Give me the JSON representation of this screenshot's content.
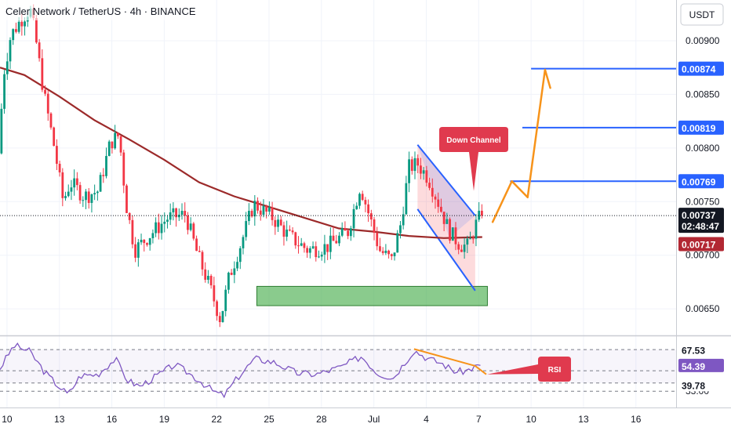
{
  "header": {
    "title": "Celer Network / TetherUS · 4h · BINANCE",
    "currency_button": "USDT"
  },
  "colors": {
    "bull": "#089981",
    "bear": "#f23645",
    "ma": "#9c2a2a",
    "target_line": "#2962ff",
    "projection": "#f7931a",
    "zone": "#4caf50",
    "rsi": "#7e57c2",
    "callout": "#e03a4e"
  },
  "annotations": {
    "down_channel": "Down Channel",
    "rsi_label": "RSI"
  },
  "chart_data": {
    "type": "candlestick",
    "symbol": "CELRUSDT",
    "exchange": "BINANCE",
    "timeframe": "4h",
    "ylabel": "USDT",
    "ylim": [
      0.00626,
      0.00938
    ],
    "x_ticks": [
      "10",
      "13",
      "16",
      "19",
      "22",
      "25",
      "28",
      "Jul",
      "4",
      "7",
      "10",
      "13",
      "16"
    ],
    "x_range_days": [
      9.6,
      16.6
    ],
    "y_ticks": [
      "0.00650",
      "0.00700",
      "0.00750",
      "0.00800",
      "0.00850",
      "0.00900"
    ],
    "anchors": [
      {
        "t": 9.6,
        "p": 0.00795
      },
      {
        "t": 9.9,
        "p": 0.0087
      },
      {
        "t": 10.3,
        "p": 0.00905
      },
      {
        "t": 10.9,
        "p": 0.0092
      },
      {
        "t": 11.4,
        "p": 0.0093
      },
      {
        "t": 11.7,
        "p": 0.00905
      },
      {
        "t": 12.2,
        "p": 0.0085
      },
      {
        "t": 12.8,
        "p": 0.008
      },
      {
        "t": 13.3,
        "p": 0.0075
      },
      {
        "t": 13.7,
        "p": 0.00768
      },
      {
        "t": 14.5,
        "p": 0.00755
      },
      {
        "t": 15.3,
        "p": 0.0076
      },
      {
        "t": 16.0,
        "p": 0.00805
      },
      {
        "t": 16.5,
        "p": 0.00812
      },
      {
        "t": 16.9,
        "p": 0.00748
      },
      {
        "t": 17.4,
        "p": 0.00705
      },
      {
        "t": 18.2,
        "p": 0.00718
      },
      {
        "t": 19.3,
        "p": 0.00735
      },
      {
        "t": 20.3,
        "p": 0.00738
      },
      {
        "t": 21.0,
        "p": 0.007
      },
      {
        "t": 21.7,
        "p": 0.0067
      },
      {
        "t": 22.3,
        "p": 0.0064
      },
      {
        "t": 22.8,
        "p": 0.0068
      },
      {
        "t": 23.5,
        "p": 0.00712
      },
      {
        "t": 24.2,
        "p": 0.00748
      },
      {
        "t": 25.3,
        "p": 0.00735
      },
      {
        "t": 26.2,
        "p": 0.00718
      },
      {
        "t": 27.3,
        "p": 0.00705
      },
      {
        "t": 28.4,
        "p": 0.00708
      },
      {
        "t": 29.6,
        "p": 0.00722
      },
      {
        "t": 30.3,
        "p": 0.00765
      },
      {
        "t": 30.8,
        "p": 0.00738
      },
      {
        "t": 31.4,
        "p": 0.00705
      },
      {
        "t": 32.1,
        "p": 0.00695
      },
      {
        "t": 32.6,
        "p": 0.00728
      },
      {
        "t": 33.1,
        "p": 0.00782
      },
      {
        "t": 33.6,
        "p": 0.00785
      },
      {
        "t": 34.2,
        "p": 0.00772
      },
      {
        "t": 34.8,
        "p": 0.00748
      },
      {
        "t": 35.4,
        "p": 0.00722
      },
      {
        "t": 36.0,
        "p": 0.0071
      },
      {
        "t": 36.5,
        "p": 0.00708
      },
      {
        "t": 36.9,
        "p": 0.00728
      },
      {
        "t": 37.2,
        "p": 0.00737
      }
    ],
    "moving_average": [
      {
        "t": 9.6,
        "p": 0.00875
      },
      {
        "t": 11.0,
        "p": 0.00868
      },
      {
        "t": 13.0,
        "p": 0.00848
      },
      {
        "t": 15.0,
        "p": 0.00826
      },
      {
        "t": 17.0,
        "p": 0.00808
      },
      {
        "t": 19.0,
        "p": 0.00789
      },
      {
        "t": 21.0,
        "p": 0.00768
      },
      {
        "t": 23.0,
        "p": 0.00755
      },
      {
        "t": 25.0,
        "p": 0.00745
      },
      {
        "t": 27.0,
        "p": 0.00735
      },
      {
        "t": 29.0,
        "p": 0.00725
      },
      {
        "t": 31.0,
        "p": 0.00722
      },
      {
        "t": 33.0,
        "p": 0.00718
      },
      {
        "t": 35.0,
        "p": 0.00716
      },
      {
        "t": 37.2,
        "p": 0.00717
      }
    ],
    "last_price": {
      "label": "0.00737",
      "value": 0.00737,
      "countdown": "02:48:47"
    },
    "ma_value": {
      "label": "0.00717",
      "value": 0.00717
    },
    "target_levels": [
      {
        "label": "0.00769",
        "value": 0.00769,
        "t_start": 38.8
      },
      {
        "label": "0.00819",
        "value": 0.00819,
        "t_start": 39.5
      },
      {
        "label": "0.00874",
        "value": 0.00874,
        "t_start": 40.0
      }
    ],
    "down_channel": {
      "upper": [
        {
          "t": 33.5,
          "p": 0.00803
        },
        {
          "t": 36.8,
          "p": 0.00737
        }
      ],
      "lower": [
        {
          "t": 33.5,
          "p": 0.00743
        },
        {
          "t": 36.8,
          "p": 0.00667
        }
      ]
    },
    "support_zone": {
      "t_start": 24.3,
      "t_end": 37.5,
      "p_top": 0.00671,
      "p_bottom": 0.00653
    },
    "projection_path": [
      {
        "t": 37.8,
        "p": 0.00731
      },
      {
        "t": 38.9,
        "p": 0.00769
      },
      {
        "t": 39.8,
        "p": 0.00754
      },
      {
        "t": 40.8,
        "p": 0.00873
      },
      {
        "t": 41.1,
        "p": 0.00856
      }
    ],
    "rsi": {
      "name": "RSI",
      "levels": [
        {
          "label": "67.53",
          "value": 67.53
        },
        {
          "label": "54.39",
          "value": 54.39
        },
        {
          "label": "39.78",
          "value": 39.78
        }
      ],
      "partial_label": "33.00",
      "ylim": [
        26,
        78
      ],
      "anchors": [
        {
          "t": 9.6,
          "v": 52
        },
        {
          "t": 10.4,
          "v": 71
        },
        {
          "t": 11.3,
          "v": 66
        },
        {
          "t": 12.2,
          "v": 48
        },
        {
          "t": 12.9,
          "v": 38
        },
        {
          "t": 13.5,
          "v": 30
        },
        {
          "t": 14.2,
          "v": 46
        },
        {
          "t": 15.2,
          "v": 47
        },
        {
          "t": 16.2,
          "v": 60
        },
        {
          "t": 16.9,
          "v": 42
        },
        {
          "t": 17.6,
          "v": 37
        },
        {
          "t": 18.6,
          "v": 46
        },
        {
          "t": 19.6,
          "v": 55
        },
        {
          "t": 20.3,
          "v": 49
        },
        {
          "t": 21.1,
          "v": 41
        },
        {
          "t": 21.8,
          "v": 33
        },
        {
          "t": 22.4,
          "v": 29
        },
        {
          "t": 23.3,
          "v": 46
        },
        {
          "t": 24.2,
          "v": 60
        },
        {
          "t": 25.3,
          "v": 57
        },
        {
          "t": 26.6,
          "v": 48
        },
        {
          "t": 27.7,
          "v": 47
        },
        {
          "t": 29.1,
          "v": 53
        },
        {
          "t": 30.3,
          "v": 62
        },
        {
          "t": 31.2,
          "v": 48
        },
        {
          "t": 32.1,
          "v": 44
        },
        {
          "t": 33.3,
          "v": 67
        },
        {
          "t": 34.1,
          "v": 60
        },
        {
          "t": 34.9,
          "v": 56
        },
        {
          "t": 35.7,
          "v": 49
        },
        {
          "t": 36.3,
          "v": 50
        },
        {
          "t": 36.9,
          "v": 54
        },
        {
          "t": 37.2,
          "v": 54.4
        }
      ],
      "divergence_line": [
        {
          "t": 33.3,
          "v": 68
        },
        {
          "t": 36.8,
          "v": 54
        }
      ],
      "divergence_tail": [
        {
          "t": 36.8,
          "v": 54
        },
        {
          "t": 37.3,
          "v": 47
        }
      ]
    }
  }
}
